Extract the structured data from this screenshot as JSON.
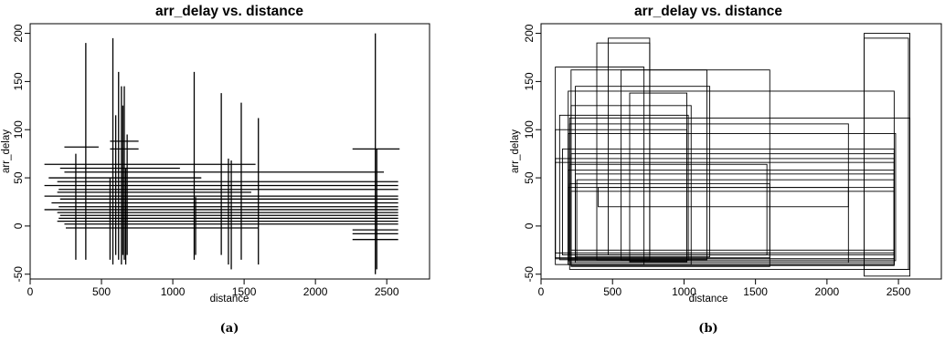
{
  "chart_data": [
    {
      "type": "line",
      "title": "arr_delay vs. distance",
      "xlabel": "distance",
      "ylabel": "arr_delay",
      "caption": "(a)",
      "xlim": [
        0,
        2800
      ],
      "ylim": [
        -55,
        210
      ],
      "xticks": [
        0,
        500,
        1000,
        1500,
        2000,
        2500
      ],
      "yticks": [
        -50,
        0,
        50,
        100,
        150,
        200
      ],
      "grid": false,
      "encoding": "horizontal segments span distance ranges at a delay value; vertical segments span delay ranges at a distance value",
      "horizontal_segments": [
        {
          "y": 82,
          "x": [
            240,
            480
          ]
        },
        {
          "y": 80,
          "x": [
            2260,
            2590
          ]
        },
        {
          "y": 88,
          "x": [
            560,
            760
          ]
        },
        {
          "y": 80,
          "x": [
            560,
            760
          ]
        },
        {
          "y": 64,
          "x": [
            100,
            1580
          ]
        },
        {
          "y": 60,
          "x": [
            210,
            1050
          ]
        },
        {
          "y": 56,
          "x": [
            240,
            2480
          ]
        },
        {
          "y": 50,
          "x": [
            130,
            1200
          ]
        },
        {
          "y": 46,
          "x": [
            190,
            2580
          ]
        },
        {
          "y": 42,
          "x": [
            100,
            2580
          ]
        },
        {
          "y": 38,
          "x": [
            200,
            2580
          ]
        },
        {
          "y": 35,
          "x": [
            190,
            1550
          ]
        },
        {
          "y": 31,
          "x": [
            100,
            2580
          ]
        },
        {
          "y": 28,
          "x": [
            210,
            2580
          ]
        },
        {
          "y": 24,
          "x": [
            150,
            2580
          ]
        },
        {
          "y": 20,
          "x": [
            200,
            2580
          ]
        },
        {
          "y": 17,
          "x": [
            100,
            2580
          ]
        },
        {
          "y": 14,
          "x": [
            190,
            2580
          ]
        },
        {
          "y": 11,
          "x": [
            210,
            2580
          ]
        },
        {
          "y": 8,
          "x": [
            200,
            2580
          ]
        },
        {
          "y": 5,
          "x": [
            190,
            2580
          ]
        },
        {
          "y": 2,
          "x": [
            240,
            2580
          ]
        },
        {
          "y": -2,
          "x": [
            250,
            1600
          ]
        },
        {
          "y": -4,
          "x": [
            2260,
            2580
          ]
        },
        {
          "y": -8,
          "x": [
            2260,
            2580
          ]
        },
        {
          "y": -14,
          "x": [
            2260,
            2580
          ]
        }
      ],
      "vertical_segments": [
        {
          "x": 320,
          "y": [
            -35,
            75
          ]
        },
        {
          "x": 390,
          "y": [
            -35,
            190
          ]
        },
        {
          "x": 560,
          "y": [
            -35,
            50
          ]
        },
        {
          "x": 580,
          "y": [
            -40,
            195
          ]
        },
        {
          "x": 600,
          "y": [
            -30,
            115
          ]
        },
        {
          "x": 620,
          "y": [
            -35,
            160
          ]
        },
        {
          "x": 640,
          "y": [
            -40,
            145
          ]
        },
        {
          "x": 650,
          "y": [
            -30,
            125
          ]
        },
        {
          "x": 660,
          "y": [
            -35,
            145
          ]
        },
        {
          "x": 670,
          "y": [
            -40,
            60
          ]
        },
        {
          "x": 680,
          "y": [
            -30,
            95
          ]
        },
        {
          "x": 1150,
          "y": [
            -35,
            160
          ]
        },
        {
          "x": 1160,
          "y": [
            -30,
            30
          ]
        },
        {
          "x": 1340,
          "y": [
            -30,
            138
          ]
        },
        {
          "x": 1390,
          "y": [
            -40,
            70
          ]
        },
        {
          "x": 1410,
          "y": [
            -45,
            68
          ]
        },
        {
          "x": 1480,
          "y": [
            -35,
            128
          ]
        },
        {
          "x": 1600,
          "y": [
            -40,
            112
          ]
        },
        {
          "x": 2420,
          "y": [
            -50,
            200
          ]
        },
        {
          "x": 2430,
          "y": [
            -45,
            80
          ]
        }
      ]
    },
    {
      "type": "line",
      "title": "arr_delay vs. distance",
      "xlabel": "distance",
      "ylabel": "arr_delay",
      "caption": "(b)",
      "xlim": [
        0,
        2800
      ],
      "ylim": [
        -55,
        210
      ],
      "xticks": [
        0,
        500,
        1000,
        1500,
        2000,
        2500
      ],
      "yticks": [
        -50,
        0,
        50,
        100,
        150,
        200
      ],
      "grid": false,
      "encoding": "rectangles span a distance range and a delay range",
      "rectangles": [
        {
          "x": [
            2260,
            2580
          ],
          "y": [
            -52,
            200
          ]
        },
        {
          "x": [
            2260,
            2570
          ],
          "y": [
            -45,
            195
          ]
        },
        {
          "x": [
            390,
            760
          ],
          "y": [
            -35,
            190
          ]
        },
        {
          "x": [
            470,
            760
          ],
          "y": [
            -30,
            195
          ]
        },
        {
          "x": [
            100,
            720
          ],
          "y": [
            -40,
            165
          ]
        },
        {
          "x": [
            210,
            1600
          ],
          "y": [
            -42,
            162
          ]
        },
        {
          "x": [
            190,
            2470
          ],
          "y": [
            -40,
            140
          ]
        },
        {
          "x": [
            200,
            2150
          ],
          "y": [
            -38,
            106
          ]
        },
        {
          "x": [
            240,
            1180
          ],
          "y": [
            -32,
            145
          ]
        },
        {
          "x": [
            210,
            1050
          ],
          "y": [
            -40,
            125
          ]
        },
        {
          "x": [
            130,
            1030
          ],
          "y": [
            -35,
            115
          ]
        },
        {
          "x": [
            200,
            2580
          ],
          "y": [
            -45,
            112
          ]
        },
        {
          "x": [
            560,
            1160
          ],
          "y": [
            -35,
            162
          ]
        },
        {
          "x": [
            150,
            2470
          ],
          "y": [
            -30,
            80
          ]
        },
        {
          "x": [
            100,
            1020
          ],
          "y": [
            -33,
            100
          ]
        },
        {
          "x": [
            190,
            2480
          ],
          "y": [
            -36,
            96
          ]
        },
        {
          "x": [
            620,
            1020
          ],
          "y": [
            -37,
            138
          ]
        },
        {
          "x": [
            400,
            2150
          ],
          "y": [
            20,
            40
          ]
        },
        {
          "x": [
            210,
            2470
          ],
          "y": [
            -25,
            75
          ]
        },
        {
          "x": [
            100,
            2470
          ],
          "y": [
            -28,
            70
          ]
        },
        {
          "x": [
            200,
            1580
          ],
          "y": [
            -30,
            64
          ]
        },
        {
          "x": [
            190,
            2470
          ],
          "y": [
            -34,
            58
          ]
        },
        {
          "x": [
            240,
            2470
          ],
          "y": [
            -38,
            54
          ]
        },
        {
          "x": [
            250,
            2470
          ],
          "y": [
            -36,
            48
          ]
        },
        {
          "x": [
            100,
            2470
          ],
          "y": [
            -34,
            66
          ]
        },
        {
          "x": [
            200,
            1600
          ],
          "y": [
            -33,
            44
          ]
        },
        {
          "x": [
            190,
            2470
          ],
          "y": [
            -40,
            40
          ]
        },
        {
          "x": [
            210,
            2470
          ],
          "y": [
            -41,
            36
          ]
        }
      ]
    }
  ]
}
